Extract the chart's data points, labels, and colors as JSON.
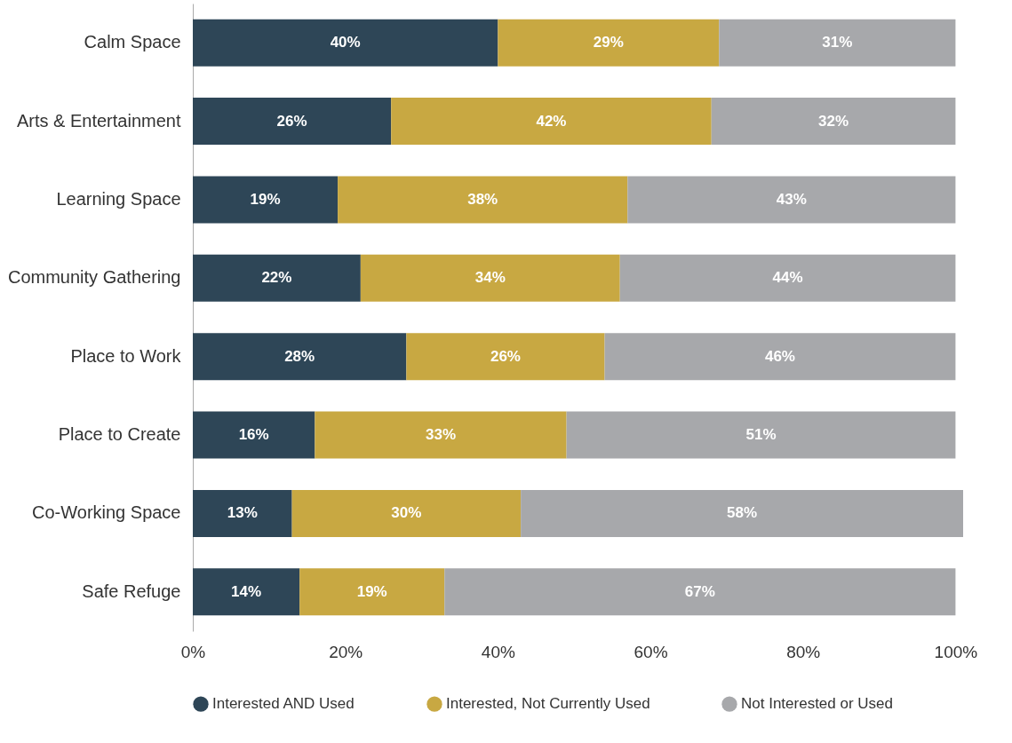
{
  "chart_data": {
    "type": "bar",
    "orientation": "horizontal",
    "stacked": true,
    "categories": [
      "Calm Space",
      "Arts & Entertainment",
      "Learning Space",
      "Community Gathering",
      "Place to Work",
      "Place to Create",
      "Co-Working Space",
      "Safe Refuge"
    ],
    "series": [
      {
        "name": "Interested AND Used",
        "color": "#2e4657",
        "values": [
          40,
          26,
          19,
          22,
          28,
          16,
          13,
          14
        ],
        "value_labels": [
          "40%",
          "26%",
          "19%",
          "22%",
          "28%",
          "16%",
          "13%",
          "14%"
        ]
      },
      {
        "name": "Interested, Not Currently Used",
        "color": "#c8a842",
        "values": [
          29,
          42,
          38,
          34,
          26,
          33,
          30,
          19
        ],
        "value_labels": [
          "29%",
          "42%",
          "38%",
          "34%",
          "26%",
          "33%",
          "30%",
          "19%"
        ]
      },
      {
        "name": "Not Interested or Used",
        "color": "#a7a8ab",
        "values": [
          31,
          32,
          43,
          44,
          46,
          51,
          58,
          67
        ],
        "value_labels": [
          "31%",
          "32%",
          "43%",
          "44%",
          "46%",
          "51%",
          "58%",
          "67%"
        ]
      }
    ],
    "xlim": [
      0,
      101
    ],
    "xticks": [
      {
        "value": 0,
        "label": "0%"
      },
      {
        "value": 20,
        "label": "20%"
      },
      {
        "value": 40,
        "label": "40%"
      },
      {
        "value": 60,
        "label": "60%"
      },
      {
        "value": 80,
        "label": "80%"
      },
      {
        "value": 100,
        "label": "100%"
      }
    ],
    "grid": false,
    "legend": "bottom",
    "marker": "circle"
  }
}
